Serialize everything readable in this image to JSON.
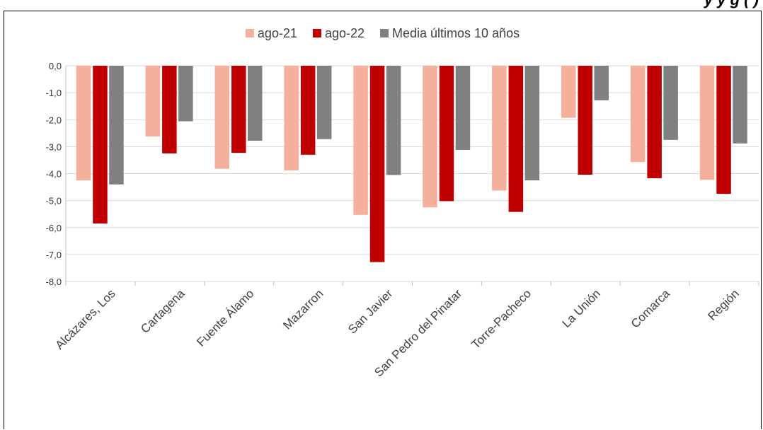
{
  "page": {
    "title": "y                                          y           g     ( )"
  },
  "chart_data": {
    "type": "bar",
    "title": "",
    "xlabel": "",
    "ylabel": "",
    "ylim": [
      -8,
      0
    ],
    "ytick_step": 1,
    "ytick_labels": [
      "0,0",
      "-1,0",
      "-2,0",
      "-3,0",
      "-4,0",
      "-5,0",
      "-6,0",
      "-7,0",
      "-8,0"
    ],
    "grid": true,
    "legend_position": "top",
    "categories": [
      "Alcázares, Los",
      "Cartagena",
      "Fuente Álamo",
      "Mazarron",
      "San Javier",
      "San Pedro del Pinatar",
      "Torre-Pacheco",
      "La Unión",
      "Comarca",
      "Región"
    ],
    "series": [
      {
        "name": "ago-21",
        "color": "#F4B09A",
        "values": [
          -4.25,
          -2.62,
          -3.82,
          -3.88,
          -5.53,
          -5.25,
          -4.63,
          -1.93,
          -3.57,
          -4.23
        ]
      },
      {
        "name": "ago-22",
        "color": "#C00000",
        "values": [
          -5.85,
          -3.25,
          -3.23,
          -3.3,
          -7.28,
          -5.02,
          -5.42,
          -4.04,
          -4.17,
          -4.75
        ]
      },
      {
        "name": "Media últimos 10 años",
        "color": "#808080",
        "values": [
          -4.4,
          -2.06,
          -2.78,
          -2.72,
          -4.05,
          -3.12,
          -4.25,
          -1.28,
          -2.75,
          -2.88
        ]
      }
    ]
  }
}
